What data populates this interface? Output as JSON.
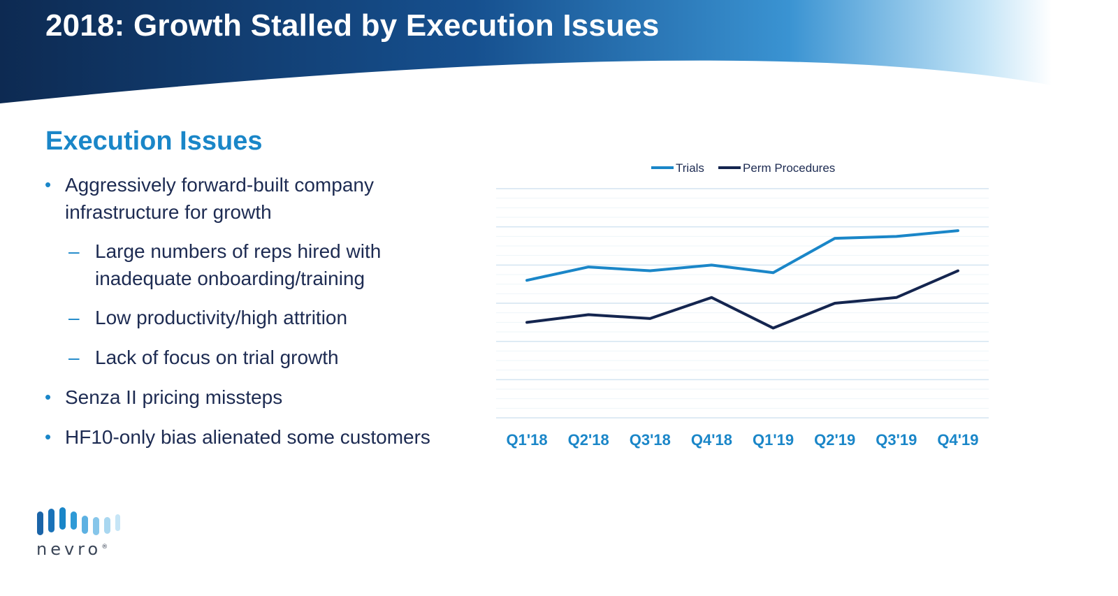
{
  "slide": {
    "title": "2018: Growth Stalled by Execution Issues",
    "section_heading": "Execution Issues"
  },
  "bullets": [
    {
      "level": 1,
      "text_lines": [
        "Aggressively forward-built company",
        "infrastructure for growth"
      ]
    },
    {
      "level": 2,
      "text_lines": [
        "Large numbers of reps hired with",
        "inadequate onboarding/training"
      ]
    },
    {
      "level": 2,
      "text_lines": [
        "Low productivity/high attrition"
      ]
    },
    {
      "level": 2,
      "text_lines": [
        "Lack of focus on trial growth"
      ]
    },
    {
      "level": 1,
      "text_lines": [
        "Senza II pricing missteps"
      ]
    },
    {
      "level": 1,
      "text_lines": [
        "HF10-only bias alienated some customers"
      ]
    }
  ],
  "bullet_markers": {
    "level_1": "•",
    "level_2": "–"
  },
  "chart_data": {
    "type": "line",
    "categories": [
      "Q1'18",
      "Q2'18",
      "Q3'18",
      "Q4'18",
      "Q1'19",
      "Q2'19",
      "Q3'19",
      "Q4'19"
    ],
    "series": [
      {
        "name": "Trials",
        "color": "#1a86c8",
        "values": [
          72,
          79,
          77,
          80,
          76,
          94,
          95,
          98
        ]
      },
      {
        "name": "Perm Procedures",
        "color": "#14254f",
        "values": [
          50,
          54,
          52,
          63,
          47,
          60,
          63,
          77
        ]
      }
    ],
    "ylim": [
      0,
      120
    ],
    "grid": true,
    "legend": "top-center",
    "y_tick_labels": "hidden"
  },
  "logo": {
    "wordmark": "nevro",
    "registered": "®"
  },
  "colors": {
    "banner_dark": "#0d2a52",
    "banner_mid": "#1a64a8",
    "banner_light": "#bfe2f6",
    "accent": "#1a86c8",
    "text": "#1d2b52"
  }
}
